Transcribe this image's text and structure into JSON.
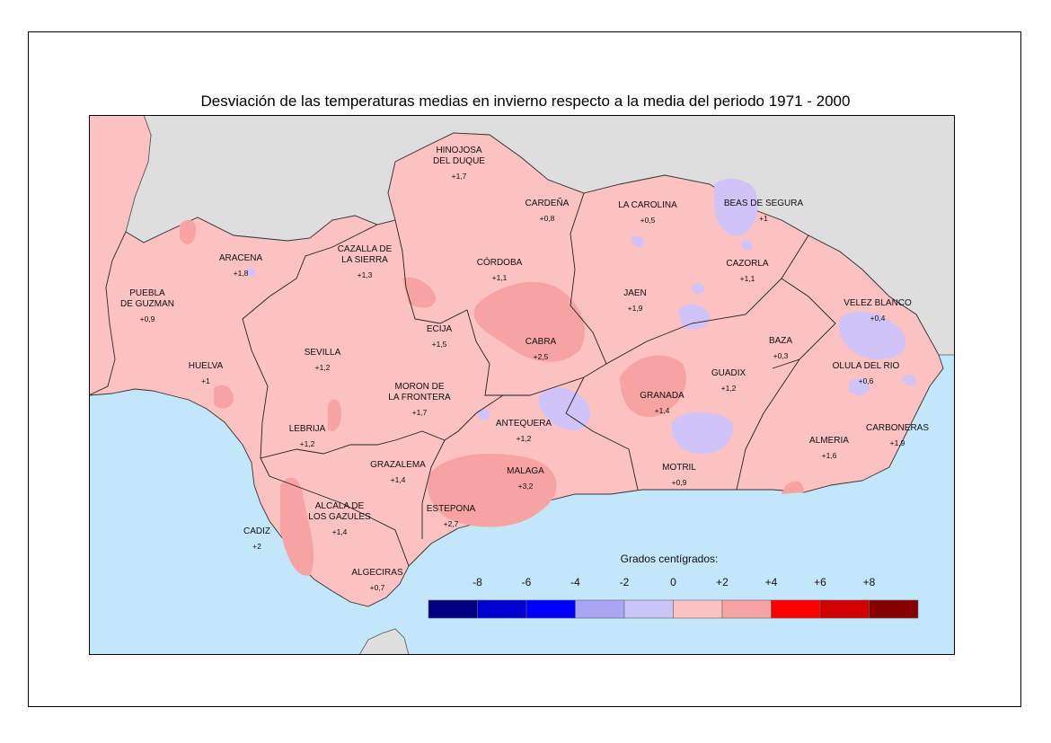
{
  "title": "Desviación de las temperaturas medias en invierno respecto a la media del periodo 1971 - 2000",
  "colors": {
    "sea": "#c2e7fb",
    "outside": "#dedede",
    "land_base": "#fcc1c1",
    "land_warm": "#f8a3a3",
    "land_cool": "#cfc3f8",
    "land_cooler": "#b9b0f0"
  },
  "stations": [
    {
      "name_lines": [
        "HINOJOSA",
        "DEL DUQUE"
      ],
      "value": "+1,7"
    },
    {
      "name_lines": [
        "CARDEÑA"
      ],
      "value": "+0,8"
    },
    {
      "name_lines": [
        "LA CAROLINA"
      ],
      "value": "+0,5"
    },
    {
      "name_lines": [
        "BEAS DE SEGURA"
      ],
      "value": "+1"
    },
    {
      "name_lines": [
        "ARACENA"
      ],
      "value": "+1,8"
    },
    {
      "name_lines": [
        "CAZALLA DE",
        "LA SIERRA"
      ],
      "value": "+1,3"
    },
    {
      "name_lines": [
        "CÓRDOBA"
      ],
      "value": "+1,1"
    },
    {
      "name_lines": [
        "CAZORLA"
      ],
      "value": "+1,1"
    },
    {
      "name_lines": [
        "PUEBLA",
        "DE GUZMAN"
      ],
      "value": "+0,9"
    },
    {
      "name_lines": [
        "JAEN"
      ],
      "value": "+1,9"
    },
    {
      "name_lines": [
        "VELEZ BLANCO"
      ],
      "value": "+0,4"
    },
    {
      "name_lines": [
        "ECIJA"
      ],
      "value": "+1,5"
    },
    {
      "name_lines": [
        "SEVILLA"
      ],
      "value": "+1,2"
    },
    {
      "name_lines": [
        "CABRA"
      ],
      "value": "+2,5"
    },
    {
      "name_lines": [
        "BAZA"
      ],
      "value": "+0,3"
    },
    {
      "name_lines": [
        "HUELVA"
      ],
      "value": "+1"
    },
    {
      "name_lines": [
        "GUADIX"
      ],
      "value": "+1,2"
    },
    {
      "name_lines": [
        "OLULA DEL RIO"
      ],
      "value": "+0,6"
    },
    {
      "name_lines": [
        "MORON DE",
        "LA FRONTERA"
      ],
      "value": "+1,7"
    },
    {
      "name_lines": [
        "GRANADA"
      ],
      "value": "+1,4"
    },
    {
      "name_lines": [
        "ANTEQUERA"
      ],
      "value": "+1,2"
    },
    {
      "name_lines": [
        "LEBRIJA"
      ],
      "value": "+1,2"
    },
    {
      "name_lines": [
        "CARBONERAS"
      ],
      "value": "+1,9"
    },
    {
      "name_lines": [
        "ALMERIA"
      ],
      "value": "+1,6"
    },
    {
      "name_lines": [
        "GRAZALEMA"
      ],
      "value": "+1,4"
    },
    {
      "name_lines": [
        "MOTRIL"
      ],
      "value": "+0,9"
    },
    {
      "name_lines": [
        "MALAGA"
      ],
      "value": "+3,2"
    },
    {
      "name_lines": [
        "ALCALA DE",
        "LOS GAZULES"
      ],
      "value": "+1,4"
    },
    {
      "name_lines": [
        "ESTEPONA"
      ],
      "value": "+2,7"
    },
    {
      "name_lines": [
        "CADIZ"
      ],
      "value": "+2"
    },
    {
      "name_lines": [
        "ALGECIRAS"
      ],
      "value": "+0,7"
    }
  ],
  "legend": {
    "title": "Grados centígrados:",
    "ticks": [
      "-8",
      "-6",
      "-4",
      "-2",
      "0",
      "+2",
      "+4",
      "+6",
      "+8"
    ],
    "colors": [
      "#000080",
      "#0000d0",
      "#0000ff",
      "#a9a4f4",
      "#cac4f8",
      "#fcc1c1",
      "#f8a3a3",
      "#fe0000",
      "#d20000",
      "#860000"
    ]
  }
}
